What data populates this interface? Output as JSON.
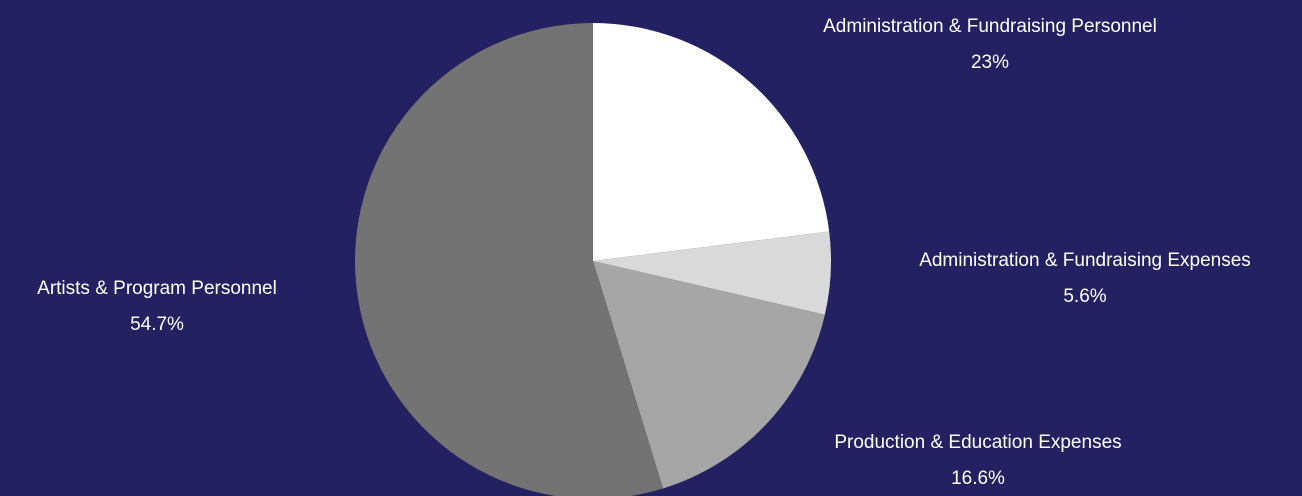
{
  "chart_data": {
    "type": "pie",
    "start_angle_deg": 0,
    "direction": "clockwise",
    "slices": [
      {
        "label": "Administration & Fundraising Personnel",
        "value": 23,
        "value_label": "23%",
        "color": "#ffffff"
      },
      {
        "label": "Administration & Fundraising Expenses",
        "value": 5.6,
        "value_label": "5.6%",
        "color": "#d9d9d9"
      },
      {
        "label": "Production & Education Expenses",
        "value": 16.6,
        "value_label": "16.6%",
        "color": "#a6a6a6"
      },
      {
        "label": "Artists & Program Personnel",
        "value": 54.7,
        "value_label": "54.7%",
        "color": "#737373"
      }
    ],
    "label_color": "#ffffff",
    "background_color": "#232161"
  }
}
